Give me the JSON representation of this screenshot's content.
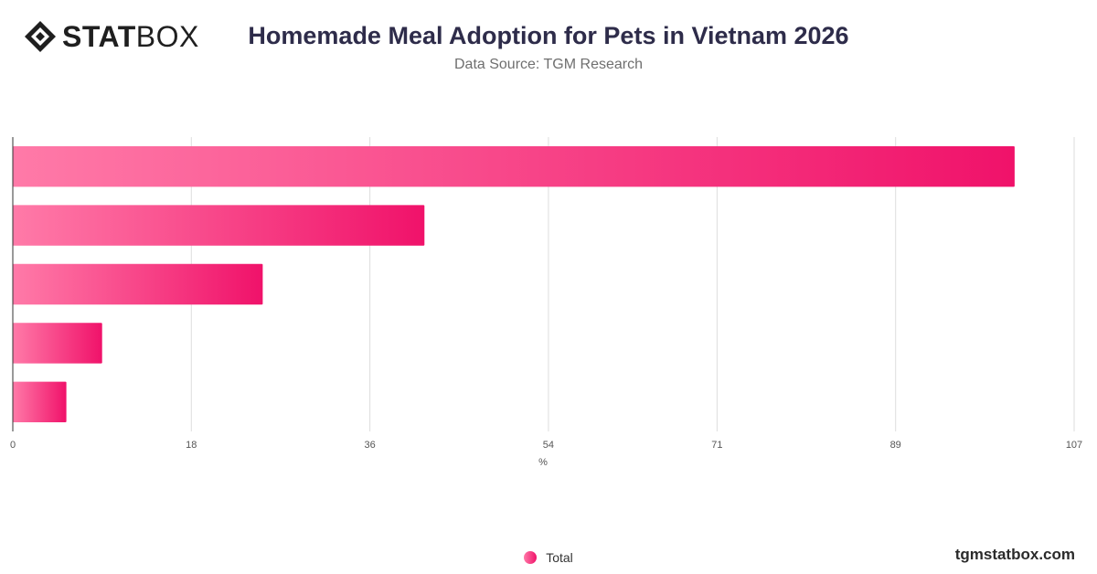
{
  "brand": {
    "logo_bold": "STAT",
    "logo_light": "BOX",
    "site": "tgmstatbox.com"
  },
  "header": {
    "title": "Homemade Meal Adoption for Pets in Vietnam 2026",
    "subtitle": "Data Source: TGM Research"
  },
  "icons": {
    "logo": "diamond-logo-icon",
    "legend": "circle-swatch-icon"
  },
  "colors": {
    "bar_start": "#ff7aa8",
    "bar_end": "#f0126a",
    "grid": "#dddddd"
  },
  "chart_data": {
    "type": "bar",
    "orientation": "horizontal",
    "categories": [
      "",
      "",
      "",
      "",
      ""
    ],
    "series": [
      {
        "name": "Total",
        "values": [
          101,
          41.5,
          25.2,
          9,
          5.4
        ]
      }
    ],
    "xlabel": "%",
    "xlim": [
      0,
      107
    ],
    "xticks": [
      0,
      18,
      36,
      54,
      71,
      89,
      107
    ],
    "grid": true,
    "legend": "bottom-center"
  }
}
